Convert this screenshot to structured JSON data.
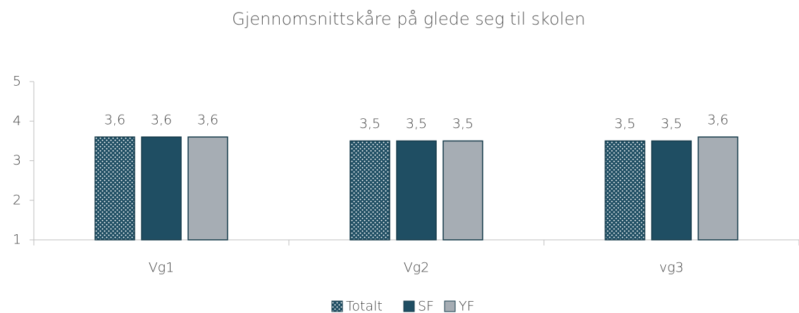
{
  "chart_data": {
    "type": "bar",
    "title": "Gjennomsnittskåre på glede seg til skolen",
    "categories": [
      "Vg1",
      "Vg2",
      "vg3"
    ],
    "series": [
      {
        "name": "Totalt",
        "color": "#1f4e63",
        "pattern": "dots",
        "values": [
          3.6,
          3.5,
          3.5
        ],
        "value_labels": [
          "3,6",
          "3,5",
          "3,5"
        ]
      },
      {
        "name": "SF",
        "color": "#1f4e63",
        "values": [
          3.6,
          3.5,
          3.5
        ],
        "value_labels": [
          "3,6",
          "3,5",
          "3,5"
        ]
      },
      {
        "name": "YF",
        "color": "#a6adb4",
        "values": [
          3.6,
          3.5,
          3.6
        ],
        "value_labels": [
          "3,6",
          "3,5",
          "3,6"
        ]
      }
    ],
    "ylim": [
      1,
      5
    ],
    "yticks": [
      1,
      2,
      3,
      4,
      5
    ],
    "grid": false,
    "legend": "bottom"
  }
}
